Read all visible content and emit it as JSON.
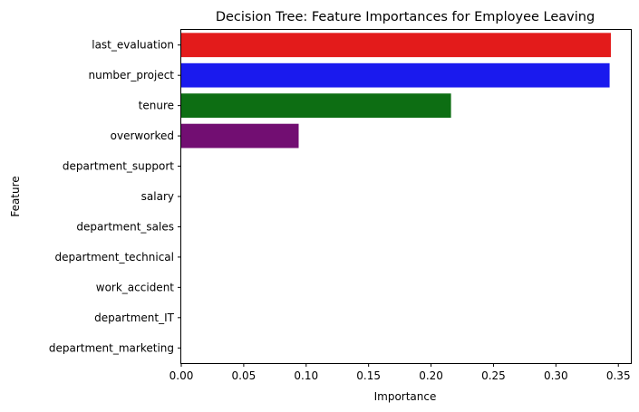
{
  "chart_data": {
    "type": "bar",
    "orientation": "horizontal",
    "title": "Decision Tree: Feature Importances for Employee Leaving",
    "xlabel": "Importance",
    "ylabel": "Feature",
    "xlim": [
      0,
      0.36
    ],
    "xticks": [
      "0.00",
      "0.05",
      "0.10",
      "0.15",
      "0.20",
      "0.25",
      "0.30",
      "0.35"
    ],
    "grid": false,
    "legend": "none",
    "categories": [
      "last_evaluation",
      "number_project",
      "tenure",
      "overworked",
      "department_support",
      "salary",
      "department_sales",
      "department_technical",
      "work_accident",
      "department_IT",
      "department_marketing"
    ],
    "values": [
      0.344,
      0.343,
      0.216,
      0.094,
      0.0,
      0.0,
      0.0,
      0.0,
      0.0,
      0.0,
      0.0
    ],
    "colors": [
      "#e31b1b",
      "#1a1aee",
      "#0d6e13",
      "#720e72",
      "#000000",
      "#000000",
      "#000000",
      "#000000",
      "#000000",
      "#000000",
      "#000000"
    ]
  }
}
